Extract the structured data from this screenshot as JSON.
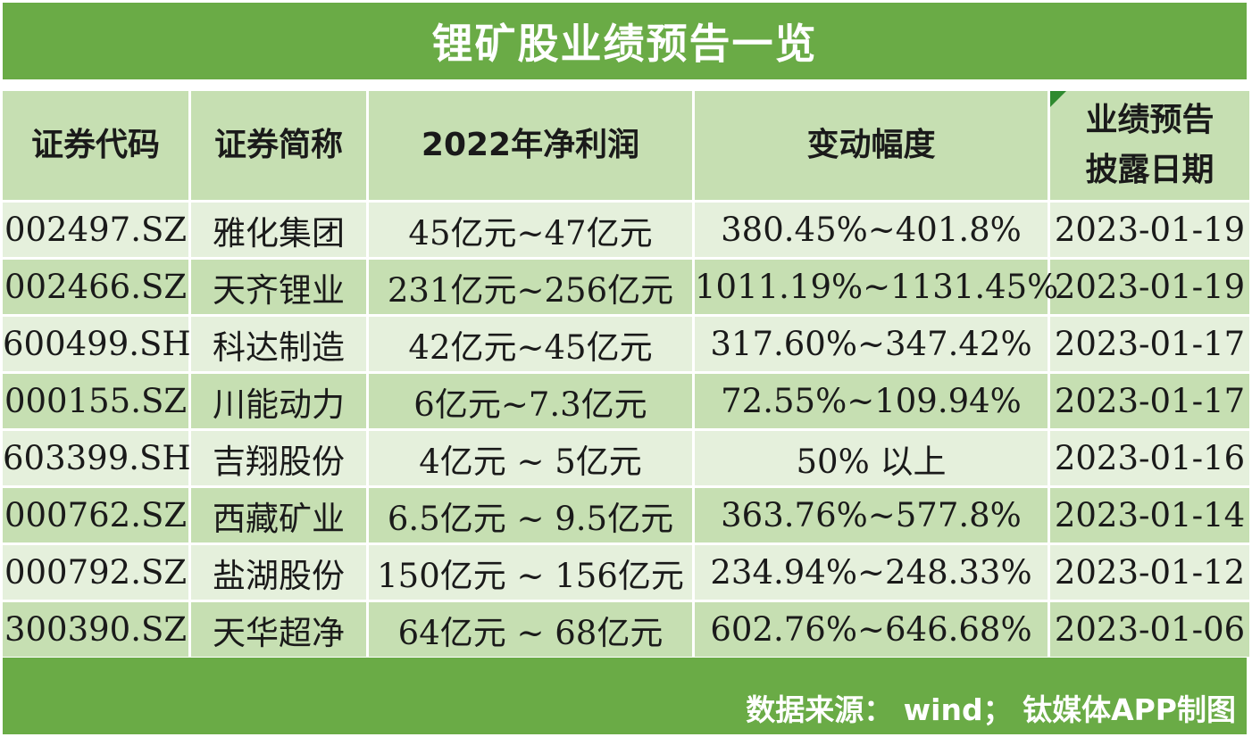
{
  "title": "锂矿股业绩预告一览",
  "headers": {
    "code": "证券代码",
    "name": "证券简称",
    "profit": "2022年净利润",
    "change": "变动幅度",
    "date_line1": "业绩预告",
    "date_line2": "披露日期"
  },
  "rows": [
    {
      "code": "002497.SZ",
      "name": "雅化集团",
      "profit": "45亿元~47亿元",
      "change": "380.45%~401.8%",
      "date": "2023-01-19"
    },
    {
      "code": "002466.SZ",
      "name": "天齐锂业",
      "profit": "231亿元~256亿元",
      "change": "1011.19%~1131.45%",
      "date": "2023-01-19"
    },
    {
      "code": "600499.SH",
      "name": "科达制造",
      "profit": "42亿元~45亿元",
      "change": "317.60%~347.42%",
      "date": "2023-01-17"
    },
    {
      "code": "000155.SZ",
      "name": "川能动力",
      "profit": "6亿元~7.3亿元",
      "change": "72.55%~109.94%",
      "date": "2023-01-17"
    },
    {
      "code": "603399.SH",
      "name": "吉翔股份",
      "profit": "4亿元 ~ 5亿元",
      "change": "50% 以上",
      "date": "2023-01-16"
    },
    {
      "code": "000762.SZ",
      "name": "西藏矿业",
      "profit": "6.5亿元 ~ 9.5亿元",
      "change": "363.76%~577.8%",
      "date": "2023-01-14"
    },
    {
      "code": "000792.SZ",
      "name": "盐湖股份",
      "profit": "150亿元 ~ 156亿元",
      "change": "234.94%~248.33%",
      "date": "2023-01-12"
    },
    {
      "code": "300390.SZ",
      "name": "天华超净",
      "profit": "64亿元 ~ 68亿元",
      "change": "602.76%~646.68%",
      "date": "2023-01-06"
    }
  ],
  "source": "数据来源： wind； 钛媒体APP制图",
  "colors": {
    "green": "#6aab46",
    "row_dark": "#c6dfb2",
    "row_light": "#e5f0dc",
    "mark": "#2f8a2f"
  }
}
